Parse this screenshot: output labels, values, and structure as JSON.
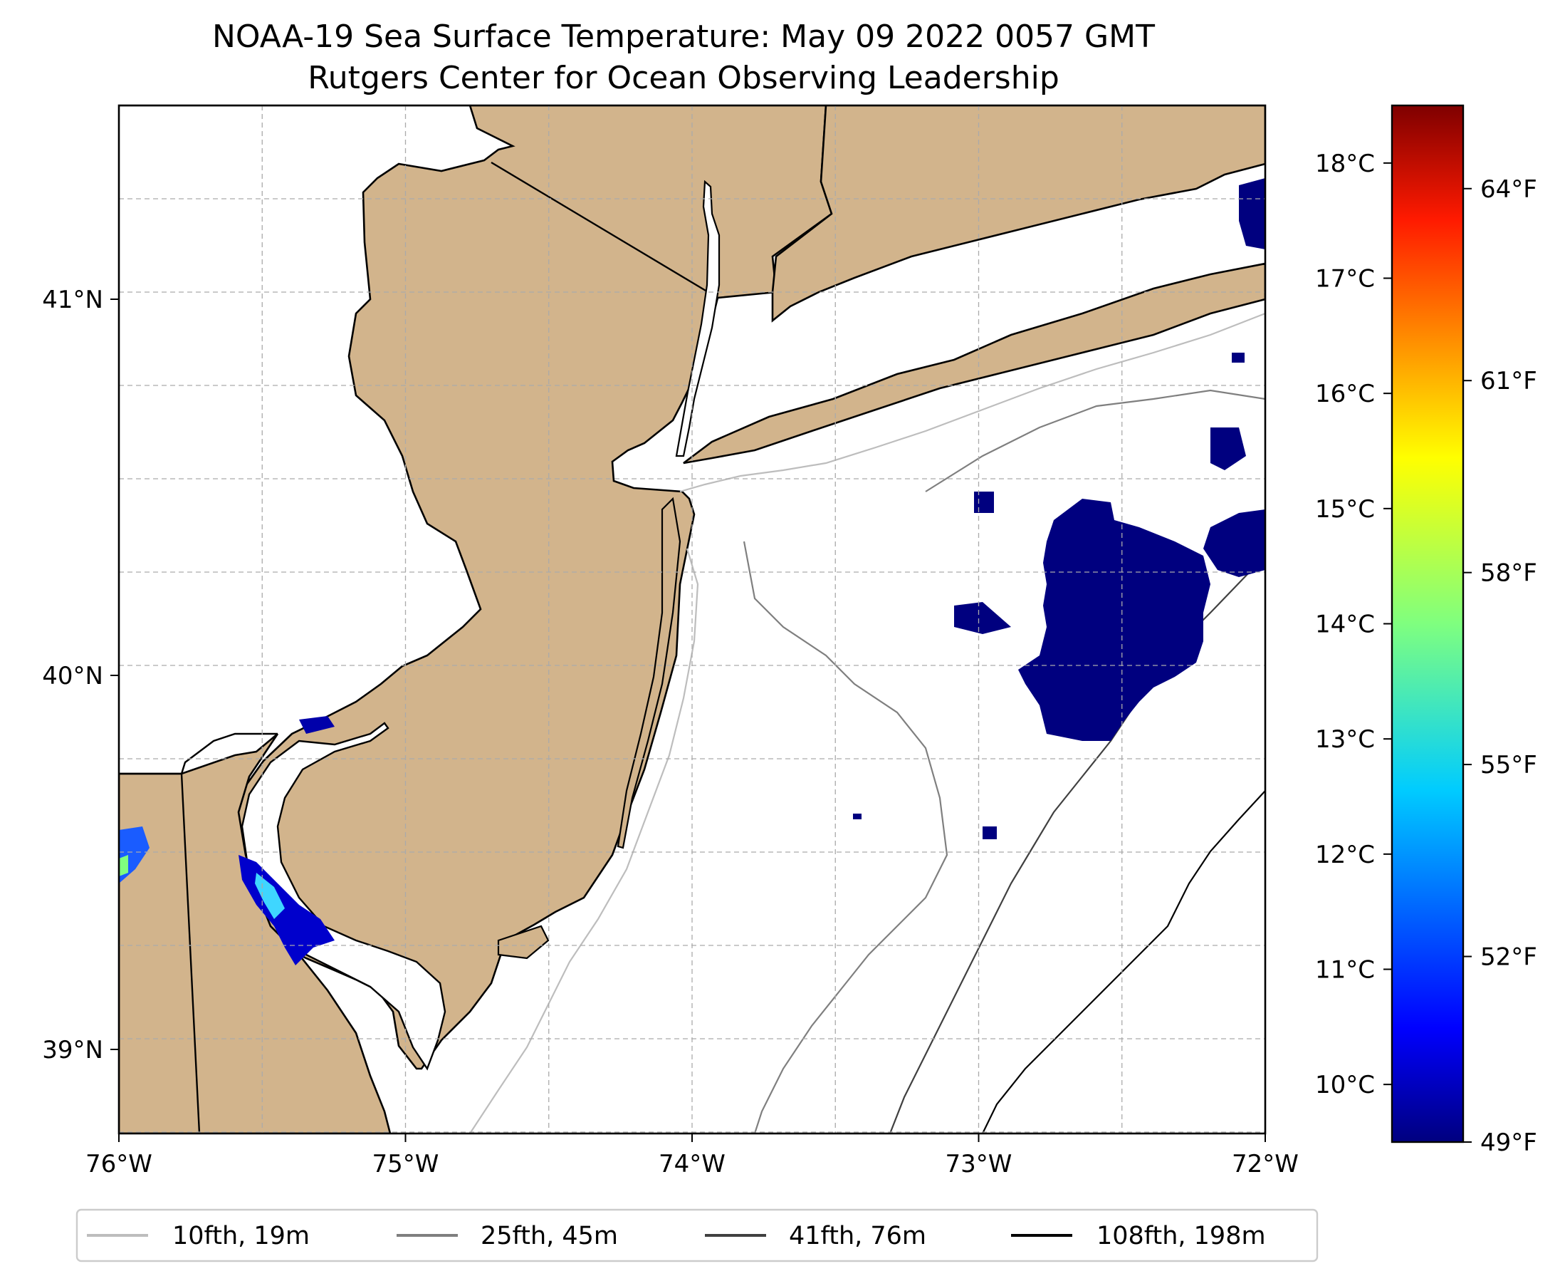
{
  "title": {
    "line1": "NOAA-19 Sea Surface Temperature: May 09 2022 0057 GMT",
    "line2": "Rutgers Center for Ocean Observing Leadership"
  },
  "colors": {
    "land": "#d2b48c",
    "ocean": "#ffffff",
    "sst_cold": "#00007f",
    "iso_10": "#bdbdbd",
    "iso_25": "#7f7f7f",
    "iso_41": "#404040",
    "iso_108": "#000000"
  },
  "chart_data": {
    "type": "heatmap",
    "map_extent": {
      "lon": [
        -76,
        -72
      ],
      "lat": [
        38.75,
        41.5
      ]
    },
    "x_ticks": [
      "76°W",
      "75°W",
      "74°W",
      "73°W",
      "72°W"
    ],
    "x_tick_values": [
      -76,
      -75,
      -74,
      -73,
      -72
    ],
    "y_ticks": [
      "41°N",
      "40°N",
      "39°N"
    ],
    "y_tick_values": [
      41,
      40,
      39
    ],
    "grid": true,
    "colorbar": {
      "colormap": "jet",
      "range_c": [
        9.5,
        18.5
      ],
      "celsius_ticks": [
        "18°C",
        "17°C",
        "16°C",
        "15°C",
        "14°C",
        "13°C",
        "12°C",
        "11°C",
        "10°C"
      ],
      "celsius_values": [
        18,
        17,
        16,
        15,
        14,
        13,
        12,
        11,
        10
      ],
      "fahrenheit_ticks": [
        "64°F",
        "61°F",
        "58°F",
        "55°F",
        "52°F",
        "49°F"
      ],
      "fahrenheit_values": [
        64,
        61,
        58,
        55,
        52,
        49
      ]
    },
    "legend": {
      "placement": "bottom",
      "entries": [
        {
          "label": "10fth, 19m",
          "color": "#bdbdbd"
        },
        {
          "label": "25fth, 45m",
          "color": "#7f7f7f"
        },
        {
          "label": "41fth, 76m",
          "color": "#404040"
        },
        {
          "label": "108fth, 198m",
          "color": "#000000"
        }
      ]
    }
  }
}
